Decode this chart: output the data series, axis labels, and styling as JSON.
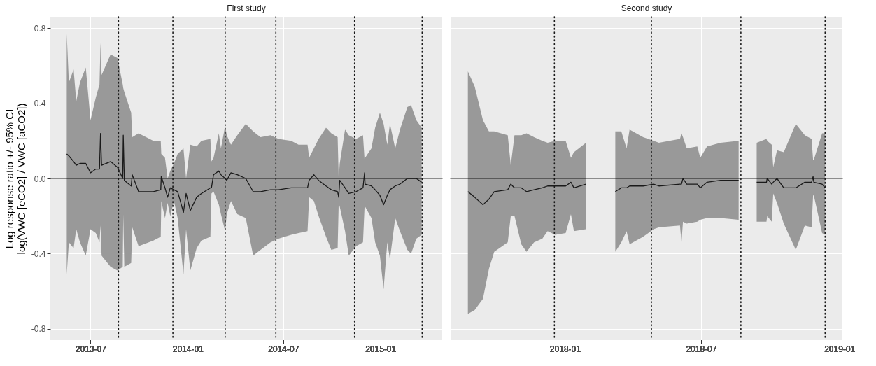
{
  "chart_data": [
    {
      "type": "line",
      "title": "First study",
      "ylabel": "Log response ratio +/- 95% CI\nlog(VWC [eCO2] / VWC [aCO2])",
      "xlim": [
        "2013-04-16",
        "2015-04-28"
      ],
      "ylim": [
        -0.86,
        0.86
      ],
      "xticks": [
        "2013-07",
        "2014-01",
        "2014-07",
        "2015-01"
      ],
      "yticks": [
        -0.8,
        -0.4,
        {
          "value": 0,
          "label": "0.0"
        },
        0.4,
        0.8
      ],
      "grid": true,
      "x": [
        "2013-05-17",
        "2013-05-21",
        "2013-05-30",
        "2013-06-04",
        "2013-06-11",
        "2013-06-22",
        "2013-07-01",
        "2013-07-11",
        "2013-07-18",
        "2013-07-20",
        "2013-07-22",
        "2013-08-08",
        "2013-08-21",
        "2013-08-31",
        "2013-09-01",
        "2013-09-03",
        "2013-09-16",
        "2013-09-18",
        "2013-09-30",
        "2013-10-28",
        "2013-11-11",
        "2013-11-12",
        "2013-11-19",
        "2013-11-24",
        "2013-11-29",
        "2013-12-06",
        "2013-12-13",
        "2013-12-24",
        "2013-12-29",
        "2014-01-06",
        "2014-01-18",
        "2014-01-27",
        "2014-02-13",
        "2014-02-15",
        "2014-02-19",
        "2014-03-01",
        "2014-03-05",
        "2014-03-13",
        "2014-03-16",
        "2014-03-24",
        "2014-04-05",
        "2014-04-21",
        "2014-05-05",
        "2014-05-19",
        "2014-06-07",
        "2014-06-22",
        "2014-07-16",
        "2014-07-30",
        "2014-08-16",
        "2014-08-19",
        "2014-08-28",
        "2014-09-06",
        "2014-09-20",
        "2014-09-30",
        "2014-10-12",
        "2014-10-14",
        "2014-10-16",
        "2014-10-26",
        "2014-11-02",
        "2014-11-16",
        "2014-11-29",
        "2014-12-02",
        "2014-12-03",
        "2014-12-15",
        "2014-12-22",
        "2014-12-31",
        "2015-01-07",
        "2015-01-14",
        "2015-01-19",
        "2015-01-29",
        "2015-02-07",
        "2015-02-21",
        "2015-02-28",
        "2015-03-10",
        "2015-03-20"
      ],
      "series": [
        {
          "color": "#1a1a1a",
          "values": [
            0.13,
            0.12,
            0.09,
            0.07,
            0.08,
            0.08,
            0.03,
            0.05,
            0.05,
            0.24,
            0.07,
            0.09,
            0.06,
            0.0,
            0.23,
            -0.01,
            -0.04,
            0.02,
            -0.07,
            -0.07,
            -0.06,
            0.01,
            -0.05,
            -0.1,
            -0.05,
            -0.06,
            -0.07,
            -0.18,
            -0.08,
            -0.17,
            -0.1,
            -0.08,
            -0.05,
            -0.05,
            0.02,
            0.04,
            0.02,
            0.0,
            -0.01,
            0.03,
            0.02,
            0.0,
            -0.07,
            -0.07,
            -0.06,
            -0.06,
            -0.05,
            -0.05,
            -0.05,
            -0.01,
            0.02,
            -0.01,
            -0.04,
            -0.06,
            -0.07,
            -0.1,
            -0.01,
            -0.05,
            -0.08,
            -0.07,
            -0.05,
            0.03,
            -0.03,
            -0.04,
            -0.06,
            -0.09,
            -0.14,
            -0.09,
            -0.06,
            -0.04,
            -0.03,
            0.0,
            0.0,
            0.0,
            -0.02
          ],
          "lower": [
            -0.51,
            -0.34,
            -0.37,
            -0.27,
            -0.34,
            -0.41,
            -0.27,
            -0.29,
            -0.34,
            -0.25,
            -0.41,
            -0.47,
            -0.49,
            -0.47,
            -0.19,
            -0.47,
            -0.45,
            -0.26,
            -0.36,
            -0.33,
            -0.31,
            -0.12,
            -0.21,
            -0.13,
            -0.2,
            -0.12,
            -0.21,
            -0.51,
            -0.27,
            -0.49,
            -0.37,
            -0.33,
            -0.31,
            -0.08,
            -0.07,
            -0.14,
            -0.19,
            -0.28,
            -0.19,
            -0.12,
            -0.19,
            -0.21,
            -0.41,
            -0.38,
            -0.34,
            -0.32,
            -0.3,
            -0.29,
            -0.28,
            -0.1,
            -0.12,
            -0.2,
            -0.31,
            -0.38,
            -0.37,
            -0.13,
            -0.15,
            -0.28,
            -0.41,
            -0.36,
            -0.34,
            -0.15,
            -0.15,
            -0.21,
            -0.34,
            -0.41,
            -0.59,
            -0.34,
            -0.43,
            -0.21,
            -0.28,
            -0.38,
            -0.4,
            -0.32,
            -0.3
          ],
          "upper": [
            0.77,
            0.51,
            0.58,
            0.41,
            0.51,
            0.59,
            0.31,
            0.43,
            0.5,
            0.72,
            0.55,
            0.66,
            0.64,
            0.5,
            0.48,
            0.46,
            0.35,
            0.22,
            0.24,
            0.2,
            0.2,
            0.13,
            0.11,
            0.0,
            0.04,
            0.08,
            0.13,
            0.16,
            0.0,
            0.18,
            0.17,
            0.2,
            0.21,
            0.09,
            0.11,
            0.24,
            0.16,
            0.28,
            0.23,
            0.18,
            0.23,
            0.29,
            0.25,
            0.22,
            0.23,
            0.21,
            0.2,
            0.18,
            0.18,
            0.11,
            0.16,
            0.21,
            0.27,
            0.24,
            0.22,
            0.0,
            0.08,
            0.26,
            0.23,
            0.21,
            0.23,
            0.1,
            0.11,
            0.16,
            0.27,
            0.35,
            0.29,
            0.18,
            0.29,
            0.16,
            0.26,
            0.38,
            0.39,
            0.31,
            0.27
          ]
        }
      ],
      "ref_lines": [
        {
          "axis": "y",
          "value": 0,
          "color": "#1a1a1a",
          "line_style": "solid"
        },
        {
          "axis": "x",
          "value": "2013-08-23",
          "color": "#1a1a1a",
          "line_style": "dotted"
        },
        {
          "axis": "x",
          "value": "2013-12-04",
          "color": "#1a1a1a",
          "line_style": "dotted"
        },
        {
          "axis": "x",
          "value": "2014-03-13",
          "color": "#1a1a1a",
          "line_style": "dotted"
        },
        {
          "axis": "x",
          "value": "2014-06-17",
          "color": "#1a1a1a",
          "line_style": "dotted"
        },
        {
          "axis": "x",
          "value": "2014-11-13",
          "color": "#1a1a1a",
          "line_style": "dotted"
        },
        {
          "axis": "x",
          "value": "2015-03-21",
          "color": "#1a1a1a",
          "line_style": "dotted"
        }
      ]
    },
    {
      "type": "line",
      "title": "Second study",
      "tick_labels": "x",
      "xlim": [
        "2017-08-02",
        "2019-01-05"
      ],
      "ylim": [
        -0.86,
        0.86
      ],
      "xticks": [
        "2018-01",
        "2018-07",
        "2019-01"
      ],
      "yticks": [
        -0.8,
        -0.4,
        0,
        0.4,
        0.8
      ],
      "grid": true,
      "x": [
        "2017-08-25",
        "2017-09-03",
        "2017-09-14",
        "2017-09-22",
        "2017-09-29",
        "2017-10-17",
        "2017-10-21",
        "2017-10-26",
        "2017-11-04",
        "2017-11-11",
        "2017-11-21",
        "2017-12-02",
        "2017-12-09",
        "2017-12-19",
        "2018-01-02",
        "2018-01-09",
        "2018-01-13",
        "2018-01-29",
        "2018-02-15",
        "2018-03-09",
        "2018-03-17",
        "2018-03-24",
        "2018-03-28",
        "2018-04-15",
        "2018-04-29",
        "2018-05-06",
        "2018-06-03",
        "2018-06-05",
        "2018-06-07",
        "2018-06-12",
        "2018-06-26",
        "2018-06-30",
        "2018-07-09",
        "2018-07-27",
        "2018-08-20",
        "2018-09-01",
        "2018-09-13",
        "2018-09-26",
        "2018-09-27",
        "2018-10-03",
        "2018-10-05",
        "2018-10-10",
        "2018-10-19",
        "2018-11-04",
        "2018-11-16",
        "2018-11-25",
        "2018-11-27",
        "2018-11-28",
        "2018-12-09",
        "2018-12-13"
      ],
      "series": [
        {
          "color": "#1a1a1a",
          "values": [
            -0.07,
            -0.1,
            -0.14,
            -0.11,
            -0.07,
            -0.06,
            -0.03,
            -0.05,
            -0.05,
            -0.07,
            -0.06,
            -0.05,
            -0.04,
            -0.04,
            -0.04,
            -0.02,
            -0.05,
            -0.03,
            null,
            -0.07,
            -0.05,
            -0.05,
            -0.04,
            -0.04,
            -0.03,
            -0.04,
            -0.03,
            -0.03,
            0.0,
            -0.03,
            -0.03,
            -0.05,
            -0.02,
            -0.01,
            -0.01,
            null,
            -0.02,
            -0.02,
            0.0,
            -0.03,
            -0.02,
            0.0,
            -0.05,
            -0.05,
            -0.02,
            -0.02,
            0.01,
            -0.02,
            -0.03,
            -0.05
          ],
          "lower": [
            -0.72,
            -0.7,
            -0.64,
            -0.48,
            -0.39,
            -0.34,
            -0.2,
            -0.2,
            -0.35,
            -0.39,
            -0.34,
            -0.32,
            -0.28,
            -0.3,
            -0.29,
            -0.19,
            -0.28,
            -0.27,
            null,
            -0.39,
            -0.34,
            -0.28,
            -0.35,
            -0.31,
            -0.27,
            -0.26,
            -0.25,
            -0.34,
            -0.23,
            -0.24,
            -0.23,
            -0.22,
            -0.21,
            -0.21,
            -0.22,
            null,
            -0.23,
            -0.23,
            -0.2,
            -0.23,
            -0.08,
            -0.13,
            -0.24,
            -0.38,
            -0.25,
            -0.26,
            -0.09,
            -0.09,
            -0.29,
            -0.3
          ],
          "upper": [
            0.57,
            0.49,
            0.31,
            0.25,
            0.25,
            0.23,
            0.07,
            0.23,
            0.23,
            0.24,
            0.22,
            0.2,
            0.19,
            0.2,
            0.2,
            0.11,
            0.14,
            0.19,
            null,
            0.25,
            0.25,
            0.16,
            0.26,
            0.22,
            0.2,
            0.19,
            0.21,
            0.24,
            0.22,
            0.16,
            0.17,
            0.11,
            0.17,
            0.19,
            0.2,
            null,
            0.19,
            0.21,
            0.2,
            0.18,
            0.06,
            0.15,
            0.14,
            0.29,
            0.23,
            0.21,
            0.1,
            0.1,
            0.24,
            0.24
          ]
        }
      ],
      "ref_lines": [
        {
          "axis": "y",
          "value": 0,
          "color": "#1a1a1a",
          "line_style": "solid"
        },
        {
          "axis": "x",
          "value": "2017-12-18",
          "color": "#1a1a1a",
          "line_style": "dotted"
        },
        {
          "axis": "x",
          "value": "2018-04-26",
          "color": "#1a1a1a",
          "line_style": "dotted"
        },
        {
          "axis": "x",
          "value": "2018-08-23",
          "color": "#1a1a1a",
          "line_style": "dotted"
        },
        {
          "axis": "x",
          "value": "2018-12-13",
          "color": "#1a1a1a",
          "line_style": "dotted"
        }
      ]
    }
  ]
}
